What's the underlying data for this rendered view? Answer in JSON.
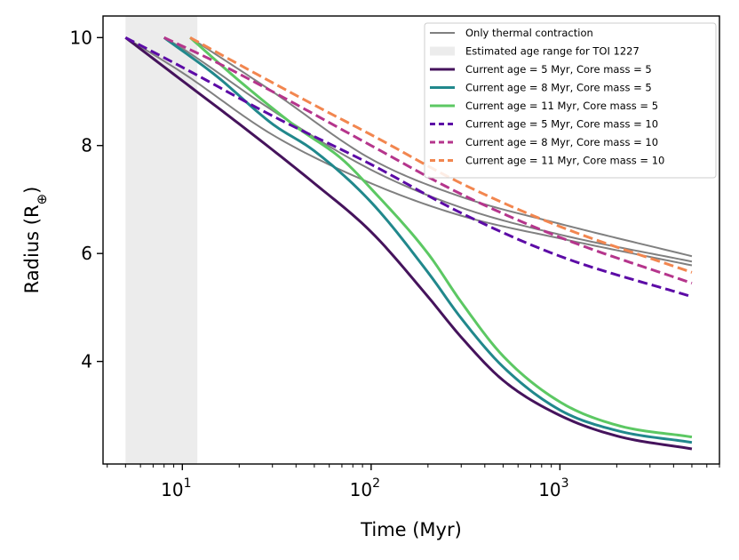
{
  "chart_data": {
    "type": "line",
    "xlabel": "Time (Myr)",
    "ylabel": "Radius (R",
    "ylabel_symbol": "⊕",
    "ylabel_close": ")",
    "xscale": "log",
    "xlim": [
      3.8,
      7000
    ],
    "ylim": [
      2.1,
      10.4
    ],
    "x_ticks": [
      {
        "value": 10,
        "base": "10",
        "exp": "1"
      },
      {
        "value": 100,
        "base": "10",
        "exp": "2"
      },
      {
        "value": 1000,
        "base": "10",
        "exp": "3"
      }
    ],
    "y_ticks": [
      {
        "value": 4,
        "label": "4"
      },
      {
        "value": 6,
        "label": "6"
      },
      {
        "value": 8,
        "label": "8"
      },
      {
        "value": 10,
        "label": "10"
      }
    ],
    "shaded_region": {
      "name": "Estimated age range for TOI 1227",
      "x": [
        5,
        12
      ],
      "color": "#ececec"
    },
    "legend_position": "upper right",
    "series": [
      {
        "name": "Only thermal contraction",
        "color": "#808080",
        "style": "solid",
        "x": [
          5,
          10,
          30,
          100,
          300,
          1000,
          5000
        ],
        "y": [
          10.0,
          9.35,
          8.2,
          7.3,
          6.7,
          6.28,
          5.78
        ],
        "legend": true
      },
      {
        "name": "",
        "color": "#808080",
        "style": "solid",
        "x": [
          8,
          10,
          30,
          100,
          300,
          1000,
          5000
        ],
        "y": [
          10.0,
          9.8,
          8.65,
          7.55,
          6.85,
          6.35,
          5.85
        ],
        "legend": false
      },
      {
        "name": "",
        "color": "#808080",
        "style": "solid",
        "x": [
          11,
          30,
          100,
          300,
          1000,
          5000
        ],
        "y": [
          10.0,
          9.0,
          7.75,
          7.05,
          6.55,
          5.95
        ],
        "legend": false
      },
      {
        "name": "Current age = 5 Myr, Core mass = 5",
        "color": "#45135c",
        "style": "solid",
        "x": [
          5,
          10,
          20,
          50,
          100,
          200,
          300,
          500,
          1000,
          2000,
          5000
        ],
        "y": [
          10.0,
          9.2,
          8.4,
          7.3,
          6.4,
          5.2,
          4.45,
          3.65,
          3.0,
          2.62,
          2.38
        ],
        "legend": true
      },
      {
        "name": "Current age = 8 Myr, Core mass = 5",
        "color": "#21888c",
        "style": "solid",
        "x": [
          8,
          15,
          30,
          50,
          100,
          200,
          300,
          500,
          1000,
          2000,
          5000
        ],
        "y": [
          10.0,
          9.3,
          8.4,
          7.9,
          6.95,
          5.65,
          4.8,
          3.9,
          3.1,
          2.72,
          2.5
        ],
        "legend": true
      },
      {
        "name": "Current age = 11 Myr, Core mass = 5",
        "color": "#5cc863",
        "style": "solid",
        "x": [
          11,
          20,
          40,
          70,
          100,
          200,
          300,
          500,
          1000,
          2000,
          5000
        ],
        "y": [
          10.0,
          9.2,
          8.35,
          7.75,
          7.2,
          6.0,
          5.1,
          4.1,
          3.25,
          2.82,
          2.6
        ],
        "legend": true
      },
      {
        "name": "Current age = 5 Myr, Core mass = 10",
        "color": "#5c0ba6",
        "style": "dashed",
        "x": [
          5,
          10,
          30,
          100,
          300,
          1000,
          5000
        ],
        "y": [
          10.0,
          9.45,
          8.55,
          7.65,
          6.75,
          5.95,
          5.2
        ],
        "legend": true
      },
      {
        "name": "Current age = 8 Myr, Core mass = 10",
        "color": "#b5358c",
        "style": "dashed",
        "x": [
          8,
          15,
          30,
          100,
          300,
          1000,
          5000
        ],
        "y": [
          10.0,
          9.55,
          9.0,
          8.0,
          7.1,
          6.3,
          5.45
        ],
        "legend": true
      },
      {
        "name": "Current age = 11 Myr, Core mass = 10",
        "color": "#f2864f",
        "style": "dashed",
        "x": [
          11,
          20,
          50,
          100,
          300,
          1000,
          5000
        ],
        "y": [
          10.0,
          9.5,
          8.75,
          8.2,
          7.3,
          6.5,
          5.65
        ],
        "legend": true
      }
    ]
  }
}
